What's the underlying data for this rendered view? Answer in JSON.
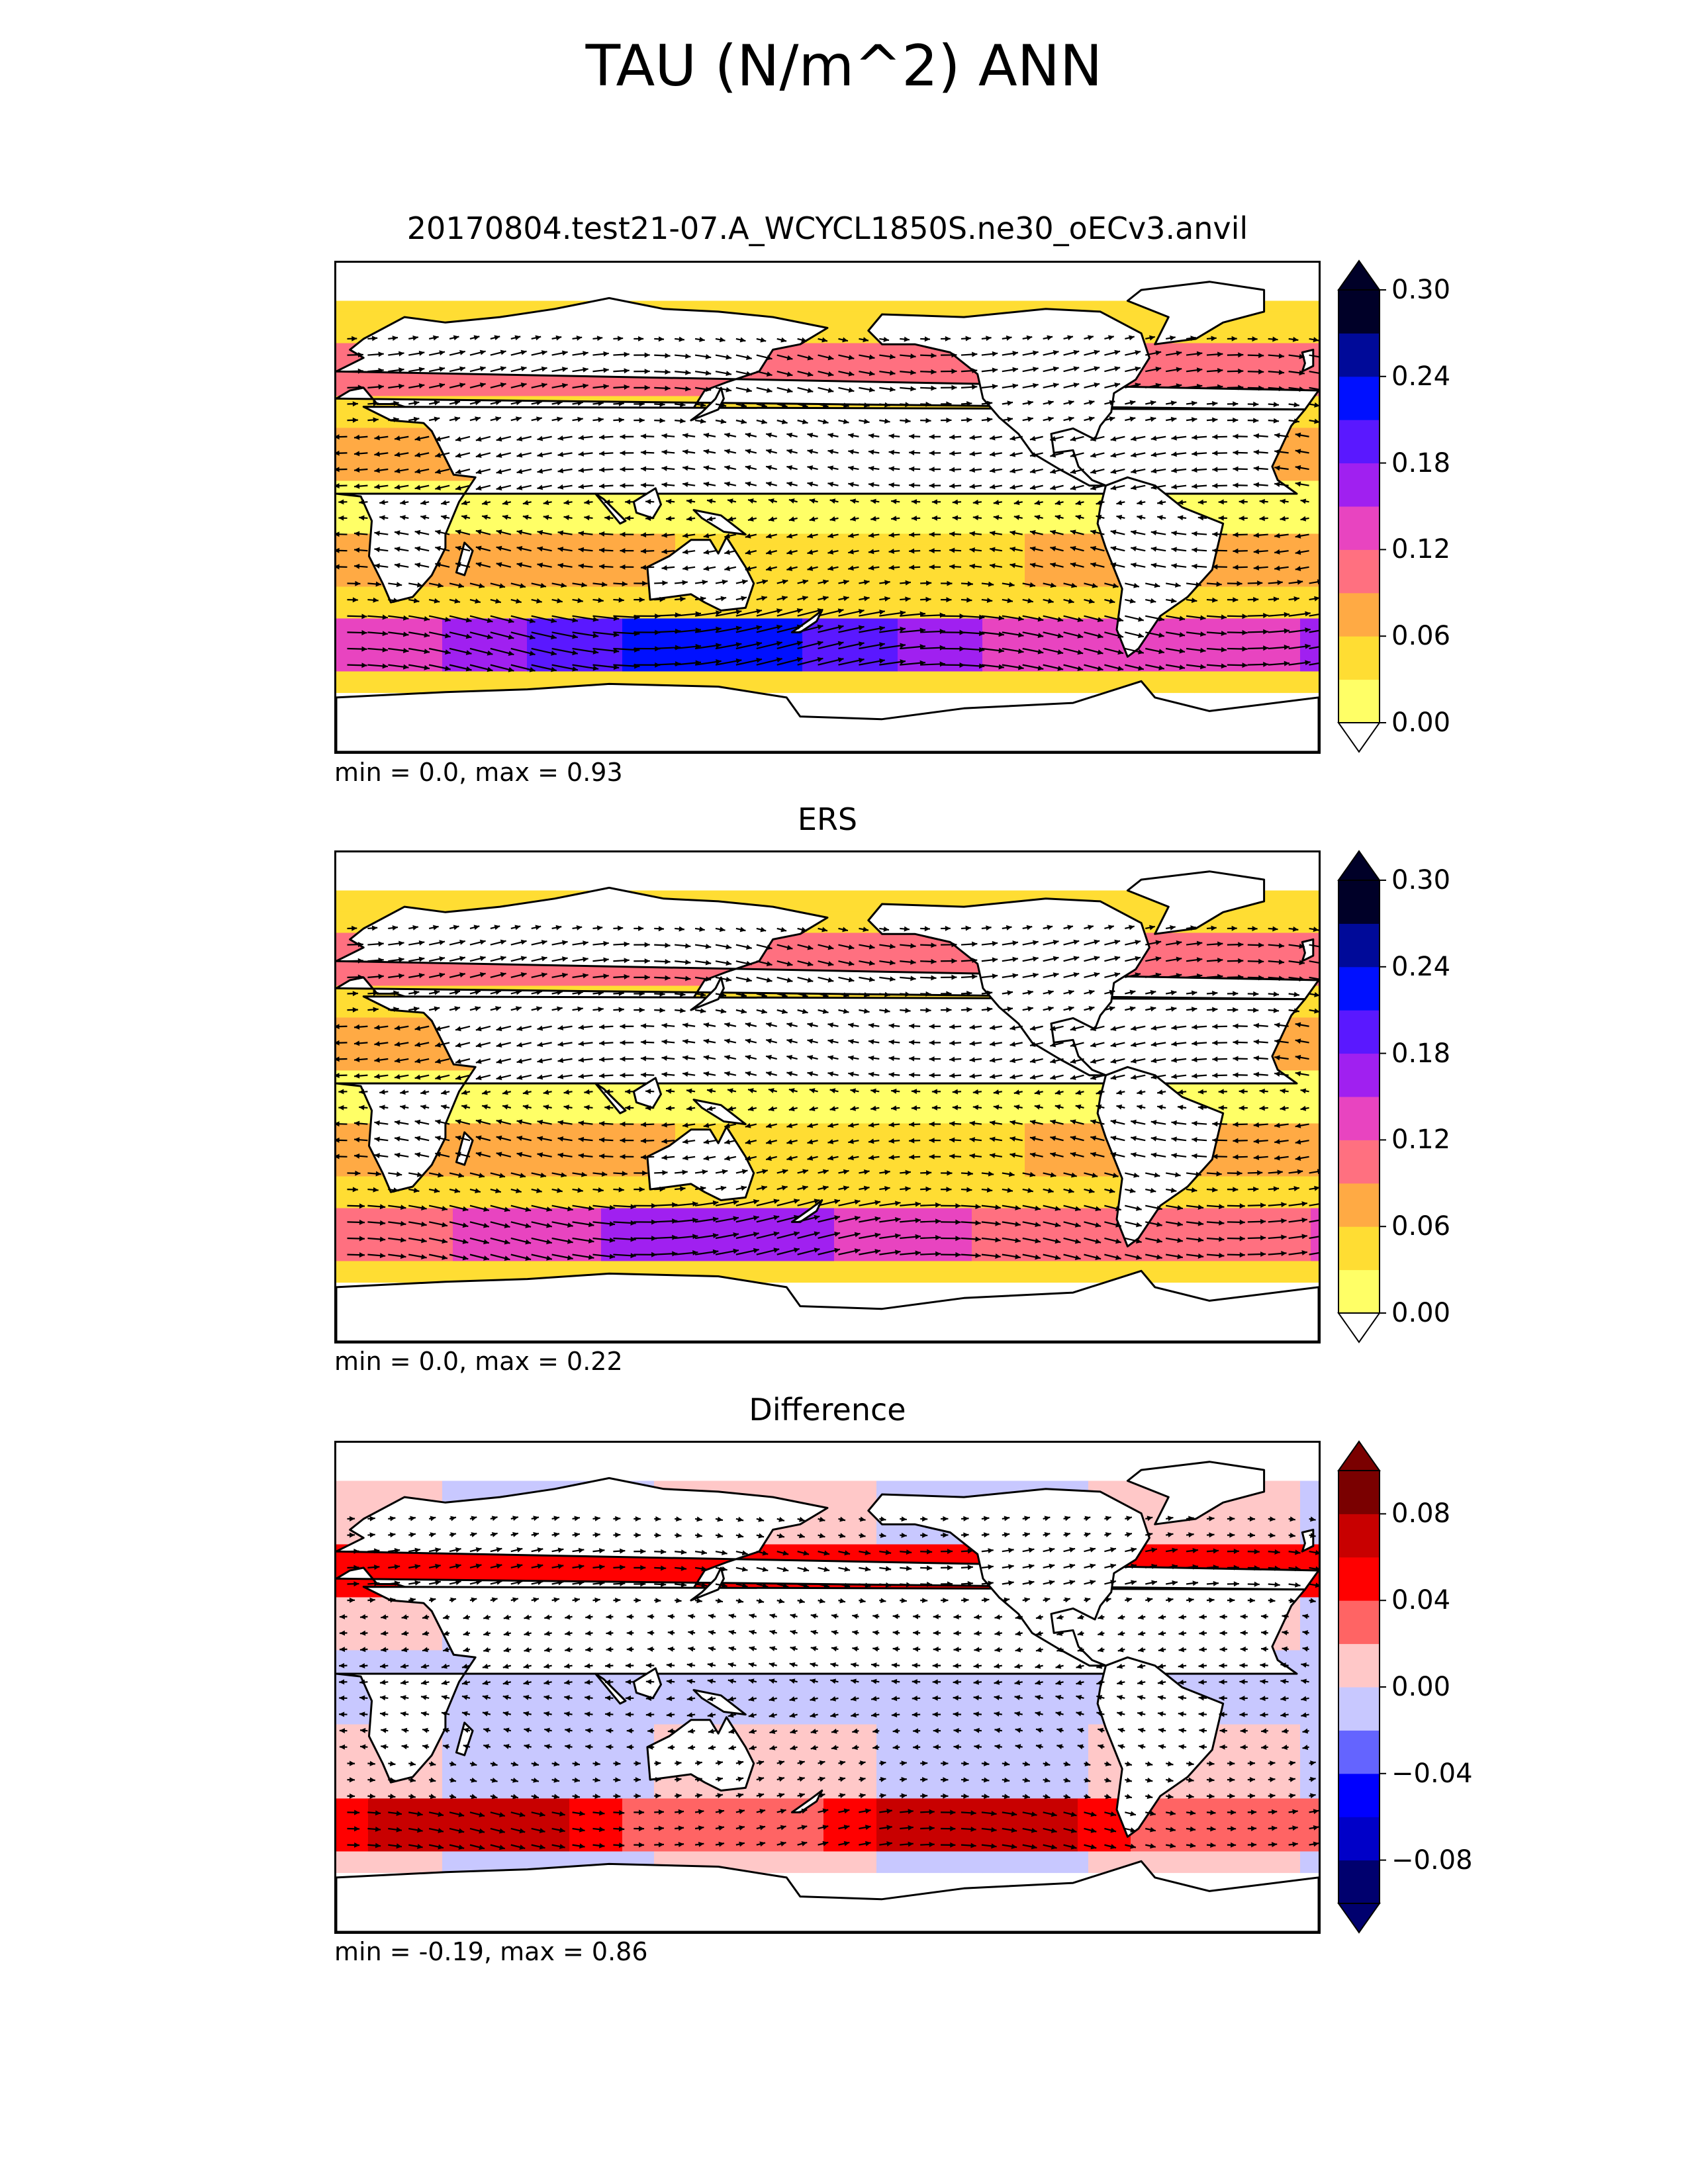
{
  "figure": {
    "title": "TAU (N/m^2) ANN"
  },
  "panels": [
    {
      "title": "20170804.test21-07.A_WCYCL1850S.ne30_oECv3.anvil",
      "stats": "min = 0.0, max = 0.93",
      "colorbar": {
        "ticks": [
          "0.00",
          "0.06",
          "0.12",
          "0.18",
          "0.24",
          "0.30"
        ],
        "levels": [
          0.0,
          0.03,
          0.06,
          0.09,
          0.12,
          0.15,
          0.18,
          0.21,
          0.24,
          0.27,
          0.3
        ],
        "colors": [
          "#ffff66",
          "#ffdd33",
          "#ffaa44",
          "#ff7080",
          "#e844c0",
          "#a020f0",
          "#5a18ff",
          "#0010ff",
          "#000a99",
          "#000028"
        ],
        "extend_low_color": "#ffffff",
        "extend_high_color": "#000028"
      }
    },
    {
      "title": "ERS",
      "stats": "min = 0.0, max = 0.22",
      "colorbar": {
        "ticks": [
          "0.00",
          "0.06",
          "0.12",
          "0.18",
          "0.24",
          "0.30"
        ],
        "levels": [
          0.0,
          0.03,
          0.06,
          0.09,
          0.12,
          0.15,
          0.18,
          0.21,
          0.24,
          0.27,
          0.3
        ],
        "colors": [
          "#ffff66",
          "#ffdd33",
          "#ffaa44",
          "#ff7080",
          "#e844c0",
          "#a020f0",
          "#5a18ff",
          "#0010ff",
          "#000a99",
          "#000028"
        ],
        "extend_low_color": "#ffffff",
        "extend_high_color": "#000028"
      }
    },
    {
      "title": "Difference",
      "stats": "min = -0.19, max = 0.86",
      "colorbar": {
        "ticks": [
          "−0.08",
          "−0.04",
          "0.00",
          "0.04",
          "0.08"
        ],
        "levels": [
          -0.1,
          -0.08,
          -0.06,
          -0.04,
          -0.02,
          0.0,
          0.02,
          0.04,
          0.06,
          0.08,
          0.1
        ],
        "colors": [
          "#00006e",
          "#0000c8",
          "#0000ff",
          "#6464ff",
          "#c8c8ff",
          "#ffc8c8",
          "#ff6464",
          "#ff0000",
          "#c80000",
          "#7a0000"
        ],
        "extend_low_color": "#00006e",
        "extend_high_color": "#7a0000"
      }
    }
  ],
  "chart_data": [
    {
      "type": "heatmap",
      "title": "20170804.test21-07.A_WCYCL1850S.ne30_oECv3.anvil",
      "value_range": [
        0.0,
        0.93
      ],
      "colorbar_range": [
        0.0,
        0.3
      ],
      "vector_overlay": true
    },
    {
      "type": "heatmap",
      "title": "ERS",
      "value_range": [
        0.0,
        0.22
      ],
      "colorbar_range": [
        0.0,
        0.3
      ],
      "vector_overlay": true
    },
    {
      "type": "heatmap",
      "title": "Difference",
      "value_range": [
        -0.19,
        0.86
      ],
      "colorbar_range": [
        -0.1,
        0.1
      ],
      "vector_overlay": true
    }
  ]
}
